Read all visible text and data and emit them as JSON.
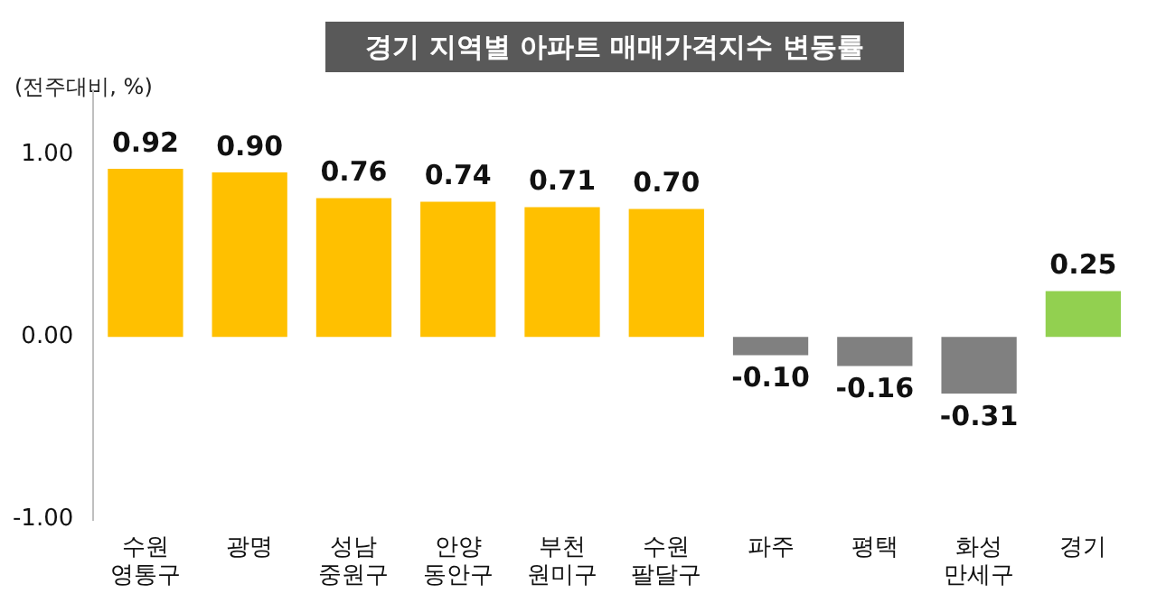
{
  "chart_data": {
    "type": "bar",
    "title": "경기 지역별 아파트 매매가격지수 변동률",
    "ylabel": "(전주대비, %)",
    "categories": [
      "수원 영통구",
      "광명",
      "성남 중원구",
      "안양 동안구",
      "부천 원미구",
      "수원 팔달구",
      "파주",
      "평택",
      "화성 만세구",
      "경기"
    ],
    "values": [
      0.92,
      0.9,
      0.76,
      0.74,
      0.71,
      0.7,
      -0.1,
      -0.16,
      -0.31,
      0.25
    ],
    "colors": [
      "#ffc000",
      "#ffc000",
      "#ffc000",
      "#ffc000",
      "#ffc000",
      "#ffc000",
      "#808080",
      "#808080",
      "#808080",
      "#92d050"
    ],
    "ylim": [
      -1,
      1.35
    ],
    "yticks": [
      {
        "value": -1,
        "label": "-1.00"
      },
      {
        "value": 0,
        "label": "0.00"
      },
      {
        "value": 1,
        "label": "1.00"
      }
    ],
    "value_labels": [
      "0.92",
      "0.90",
      "0.76",
      "0.74",
      "0.71",
      "0.70",
      "-0.10",
      "-0.16",
      "-0.31",
      "0.25"
    ],
    "grid": false,
    "legend": false
  }
}
